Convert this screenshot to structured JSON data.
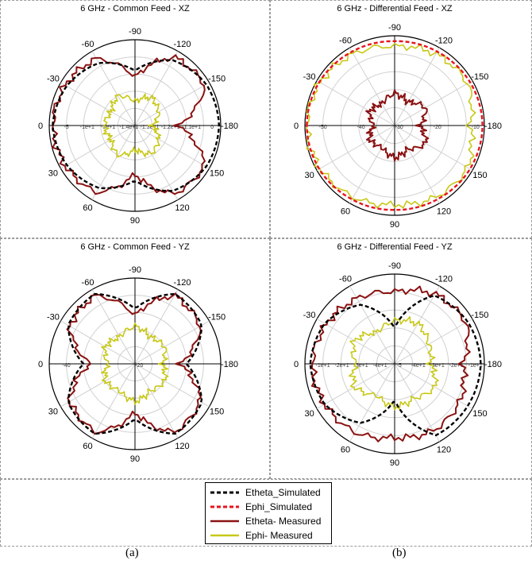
{
  "legend": {
    "items": [
      {
        "label": "Etheta_Simulated",
        "color": "#000000",
        "dash": true
      },
      {
        "label": "Ephi_Simulated",
        "color": "#e8141e",
        "dash": true
      },
      {
        "label": "Etheta- Measured",
        "color": "#8b1212",
        "dash": false
      },
      {
        "label": "Ephi- Measured",
        "color": "#c8c818",
        "dash": false
      }
    ]
  },
  "captions": {
    "a": "(a)",
    "b": "(b)"
  },
  "chart_data": [
    {
      "type": "polar",
      "title": "6 GHz - Common Feed - XZ",
      "angle_labels": [
        "-90",
        "-120",
        "-150",
        "-180",
        "150",
        "120",
        "90",
        "60",
        "30",
        "0",
        "-30",
        "-60"
      ],
      "radial_tick_labels": [
        "-5",
        "-1e+1",
        "-3e+1",
        "-1.4e+1",
        "-1.3e+1",
        "-1.2e+1",
        "-1.1e+1",
        "0"
      ],
      "rlim": [
        -50,
        0
      ],
      "series": [
        {
          "name": "Etheta_Simulated",
          "angles_deg": [
            0,
            30,
            60,
            90,
            120,
            150,
            180,
            210,
            240,
            270,
            300,
            330,
            360
          ],
          "values": [
            -2,
            -4,
            -8,
            -18,
            -6,
            -2,
            -1,
            -2,
            -6,
            -18,
            -8,
            -4,
            -2
          ]
        },
        {
          "name": "Etheta- Measured",
          "angles_deg": [
            0,
            30,
            60,
            90,
            120,
            150,
            180,
            210,
            240,
            270,
            300,
            330,
            360
          ],
          "values": [
            -2,
            -3,
            -5,
            -22,
            -4,
            -3,
            -25,
            -3,
            -4,
            -22,
            -5,
            -3,
            -2
          ]
        },
        {
          "name": "Ephi- Measured",
          "angles_deg": [
            0,
            30,
            60,
            90,
            120,
            150,
            180,
            210,
            240,
            270,
            300,
            330,
            360
          ],
          "values": [
            -32,
            -34,
            -30,
            -36,
            -31,
            -34,
            -40,
            -34,
            -31,
            -36,
            -30,
            -34,
            -32
          ]
        }
      ]
    },
    {
      "type": "polar",
      "title": "6 GHz - Differential Feed - XZ",
      "angle_labels": [
        "-90",
        "-120",
        "-150",
        "-180",
        "150",
        "120",
        "90",
        "60",
        "30",
        "0",
        "-30",
        "-60"
      ],
      "radial_tick_labels": [
        "-50",
        "-40",
        "-30",
        "-20",
        "-10"
      ],
      "rlim": [
        -50,
        0
      ],
      "series": [
        {
          "name": "Ephi_Simulated",
          "angles_deg": [
            0,
            30,
            60,
            90,
            120,
            150,
            180,
            210,
            240,
            270,
            300,
            330,
            360
          ],
          "values": [
            -1,
            -1.5,
            -2.5,
            -3,
            -2.5,
            -1.5,
            -1,
            -1.5,
            -2.5,
            -3,
            -2.5,
            -1.5,
            -1
          ]
        },
        {
          "name": "Ephi- Measured",
          "angles_deg": [
            0,
            30,
            60,
            90,
            120,
            150,
            180,
            210,
            240,
            270,
            300,
            330,
            360
          ],
          "values": [
            -1,
            -2,
            -4,
            -6,
            -4,
            -3,
            -8,
            -3,
            -4,
            -6,
            -4,
            -2,
            -1
          ]
        },
        {
          "name": "Etheta- Measured",
          "angles_deg": [
            0,
            30,
            60,
            90,
            120,
            150,
            180,
            210,
            240,
            270,
            300,
            330,
            360
          ],
          "values": [
            -38,
            -34,
            -36,
            -32,
            -35,
            -30,
            -36,
            -30,
            -35,
            -32,
            -36,
            -34,
            -38
          ]
        }
      ]
    },
    {
      "type": "polar",
      "title": "6 GHz - Common Feed - YZ",
      "angle_labels": [
        "-90",
        "-120",
        "-150",
        "-180",
        "150",
        "120",
        "90",
        "60",
        "30",
        "0",
        "-30",
        "-60"
      ],
      "radial_tick_labels": [
        "-40",
        "-20"
      ],
      "rlim": [
        -50,
        0
      ],
      "series": [
        {
          "name": "Etheta_Simulated",
          "angles_deg": [
            0,
            30,
            60,
            90,
            120,
            150,
            180,
            210,
            240,
            270,
            300,
            330,
            360
          ],
          "values": [
            -20,
            -5,
            -3,
            -18,
            -3,
            -5,
            -20,
            -5,
            -3,
            -18,
            -3,
            -5,
            -20
          ]
        },
        {
          "name": "Etheta- Measured",
          "angles_deg": [
            0,
            30,
            60,
            90,
            120,
            150,
            180,
            210,
            240,
            270,
            300,
            330,
            360
          ],
          "values": [
            -24,
            -6,
            -4,
            -22,
            -4,
            -6,
            -24,
            -6,
            -4,
            -22,
            -4,
            -6,
            -24
          ]
        },
        {
          "name": "Ephi- Measured",
          "angles_deg": [
            0,
            30,
            60,
            90,
            120,
            150,
            180,
            210,
            240,
            270,
            300,
            330,
            360
          ],
          "values": [
            -34,
            -30,
            -32,
            -28,
            -32,
            -30,
            -34,
            -30,
            -32,
            -28,
            -32,
            -30,
            -34
          ]
        }
      ]
    },
    {
      "type": "polar",
      "title": "6 GHz - Differential Feed - YZ",
      "angle_labels": [
        "-90",
        "-120",
        "-150",
        "-180",
        "150",
        "120",
        "90",
        "60",
        "30",
        "0",
        "-30",
        "-60"
      ],
      "radial_tick_labels": [
        "-1e+1",
        "-2e+1",
        "-3e+1",
        "-4e+1",
        "-5",
        "-4e+1",
        "-3e+1",
        "-2e+1",
        "-1e+1"
      ],
      "rlim": [
        -50,
        0
      ],
      "series": [
        {
          "name": "Etheta_Simulated",
          "angles_deg": [
            0,
            30,
            60,
            90,
            120,
            150,
            180,
            210,
            240,
            270,
            300,
            330,
            360
          ],
          "values": [
            -3,
            -5,
            -12,
            -30,
            -6,
            -3,
            -2,
            -3,
            -4,
            -30,
            -12,
            -5,
            -3
          ]
        },
        {
          "name": "Etheta- Measured",
          "angles_deg": [
            0,
            30,
            60,
            90,
            120,
            150,
            180,
            210,
            240,
            270,
            300,
            330,
            360
          ],
          "values": [
            -4,
            -6,
            -8,
            -10,
            -5,
            -4,
            -12,
            -8,
            -7,
            -9,
            -6,
            -5,
            -4
          ]
        },
        {
          "name": "Ephi- Measured",
          "angles_deg": [
            0,
            30,
            60,
            90,
            120,
            150,
            180,
            210,
            240,
            270,
            300,
            330,
            360
          ],
          "values": [
            -28,
            -24,
            -30,
            -26,
            -24,
            -28,
            -30,
            -24,
            -28,
            -26,
            -30,
            -24,
            -28
          ]
        }
      ]
    }
  ]
}
